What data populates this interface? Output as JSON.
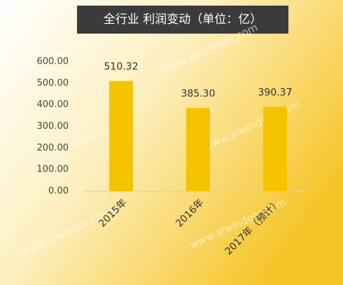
{
  "chart_data": {
    "type": "bar",
    "title": "全行业 利润变动（单位：亿）",
    "categories": [
      "2015年",
      "2016年",
      "2017年（预计）"
    ],
    "values": [
      510.32,
      385.3,
      390.37
    ],
    "value_labels": [
      "510.32",
      "385.30",
      "390.37"
    ],
    "color": "#f5c300",
    "ylim": [
      0,
      600
    ],
    "yticks": [
      {
        "value": 0,
        "label": "0.00"
      },
      {
        "value": 100,
        "label": "100.00"
      },
      {
        "value": 200,
        "label": "200.00"
      },
      {
        "value": 300,
        "label": "300.00"
      },
      {
        "value": 400,
        "label": "400.00"
      },
      {
        "value": 500,
        "label": "500.00"
      },
      {
        "value": 600,
        "label": "600.00"
      }
    ],
    "grid": false,
    "watermark": "www.alwindoor.com"
  }
}
